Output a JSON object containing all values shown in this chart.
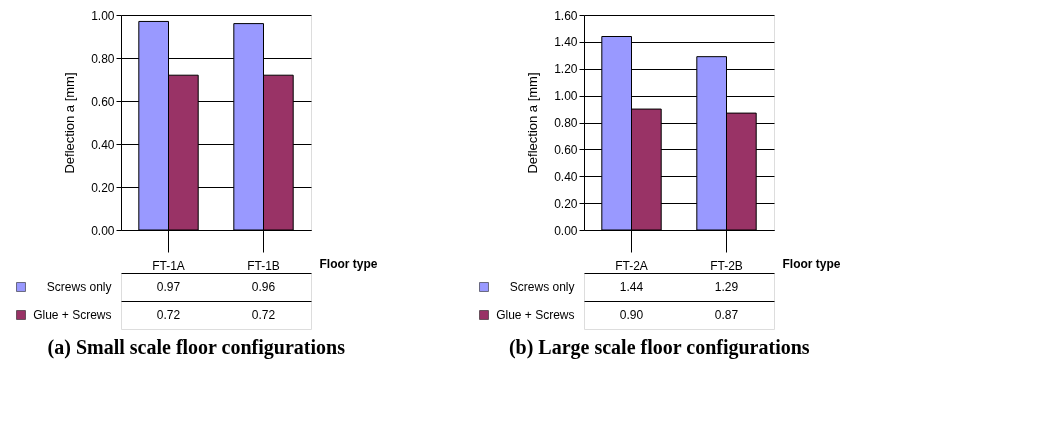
{
  "chart_data": [
    {
      "type": "bar",
      "title": "(a) Small scale floor configurations",
      "xlabel": "Floor type",
      "ylabel": "Deflection a [mm]",
      "categories": [
        "FT-1A",
        "FT-1B"
      ],
      "series": [
        {
          "name": "Screws only",
          "color": "#9999ff",
          "values": [
            0.97,
            0.96
          ],
          "value_labels": [
            "0.97",
            "0.96"
          ]
        },
        {
          "name": "Glue + Screws",
          "color": "#993366",
          "values": [
            0.72,
            0.72
          ],
          "value_labels": [
            "0.72",
            "0.72"
          ]
        }
      ],
      "ylim": [
        0,
        1.0
      ],
      "yticks": [
        {
          "value": 0,
          "label": "0.00"
        },
        {
          "value": 0.2,
          "label": "0.20"
        },
        {
          "value": 0.4,
          "label": "0.40"
        },
        {
          "value": 0.6,
          "label": "0.60"
        },
        {
          "value": 0.8,
          "label": "0.80"
        },
        {
          "value": 1.0,
          "label": "1.00"
        }
      ],
      "grid": "y",
      "legend": "bottom left"
    },
    {
      "type": "bar",
      "title": "(b) Large scale floor configurations",
      "xlabel": "Floor type",
      "ylabel": "Deflection a [mm]",
      "categories": [
        "FT-2A",
        "FT-2B"
      ],
      "series": [
        {
          "name": "Screws only",
          "color": "#9999ff",
          "values": [
            1.44,
            1.29
          ],
          "value_labels": [
            "1.44",
            "1.29"
          ]
        },
        {
          "name": "Glue + Screws",
          "color": "#993366",
          "values": [
            0.9,
            0.87
          ],
          "value_labels": [
            "0.90",
            "0.87"
          ]
        }
      ],
      "ylim": [
        0,
        1.6
      ],
      "yticks": [
        {
          "value": 0,
          "label": "0.00"
        },
        {
          "value": 0.2,
          "label": "0.20"
        },
        {
          "value": 0.4,
          "label": "0.40"
        },
        {
          "value": 0.6,
          "label": "0.60"
        },
        {
          "value": 0.8,
          "label": "0.80"
        },
        {
          "value": 1.0,
          "label": "1.00"
        },
        {
          "value": 1.2,
          "label": "1.20"
        },
        {
          "value": 1.4,
          "label": "1.40"
        },
        {
          "value": 1.6,
          "label": "1.60"
        }
      ],
      "grid": "y",
      "legend": "bottom left"
    }
  ]
}
